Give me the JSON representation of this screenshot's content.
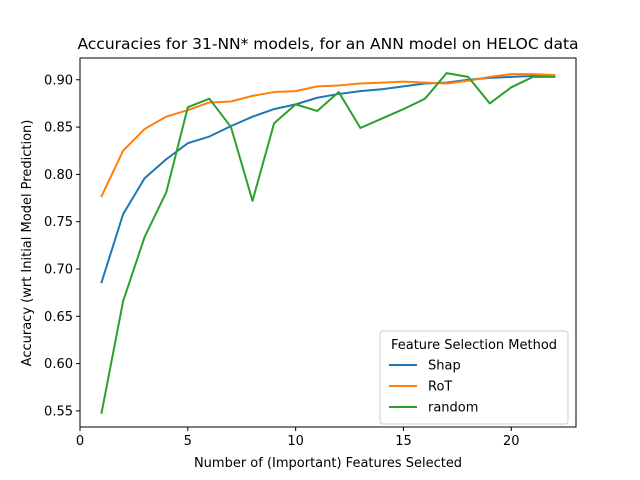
{
  "chart_data": {
    "type": "line",
    "title": "Accuracies for 31-NN* models, for an ANN model on HELOC data",
    "xlabel": "Number of (Important) Features Selected",
    "ylabel": "Accuracy (wrt Initial Model Prediction)",
    "xlim": [
      0,
      23
    ],
    "ylim": [
      0.533,
      0.923
    ],
    "xticks": [
      0,
      5,
      10,
      15,
      20
    ],
    "yticks": [
      0.55,
      0.6,
      0.65,
      0.7,
      0.75,
      0.8,
      0.85,
      0.9
    ],
    "ytick_labels": [
      "0.55",
      "0.60",
      "0.65",
      "0.70",
      "0.75",
      "0.80",
      "0.85",
      "0.90"
    ],
    "grid": false,
    "legend": {
      "title": "Feature Selection Method",
      "position": "lower-right"
    },
    "x": [
      1,
      2,
      3,
      4,
      5,
      6,
      7,
      8,
      9,
      10,
      11,
      12,
      13,
      14,
      15,
      16,
      17,
      18,
      19,
      20,
      21,
      22
    ],
    "series": [
      {
        "name": "Shap",
        "color": "#1f77b4",
        "values": [
          0.686,
          0.758,
          0.796,
          0.816,
          0.833,
          0.84,
          0.851,
          0.861,
          0.869,
          0.874,
          0.881,
          0.885,
          0.888,
          0.89,
          0.893,
          0.896,
          0.897,
          0.9,
          0.902,
          0.903,
          0.904,
          0.904
        ]
      },
      {
        "name": "RoT",
        "color": "#ff7f0e",
        "values": [
          0.777,
          0.825,
          0.848,
          0.861,
          0.868,
          0.876,
          0.877,
          0.883,
          0.887,
          0.888,
          0.893,
          0.894,
          0.896,
          0.897,
          0.898,
          0.897,
          0.896,
          0.899,
          0.903,
          0.906,
          0.906,
          0.905
        ]
      },
      {
        "name": "random",
        "color": "#2ca02c",
        "values": [
          0.548,
          0.666,
          0.734,
          0.781,
          0.871,
          0.88,
          0.85,
          0.772,
          0.854,
          0.874,
          0.867,
          0.887,
          0.849,
          0.859,
          0.869,
          0.88,
          0.907,
          0.903,
          0.875,
          0.892,
          0.903,
          0.903
        ]
      }
    ]
  }
}
